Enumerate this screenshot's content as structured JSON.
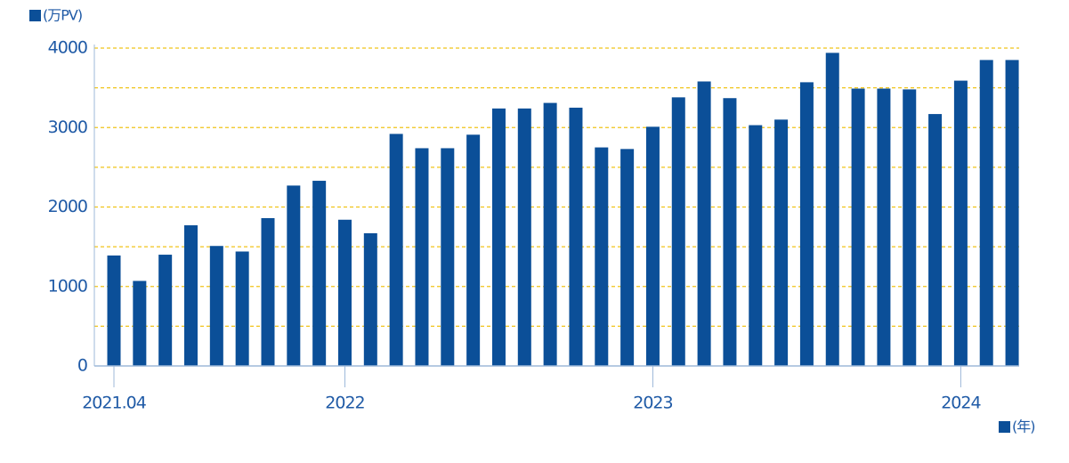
{
  "chart_data": {
    "type": "bar",
    "y_axis_label": "(万PV)",
    "x_axis_label": "(年)",
    "categories": [
      "2021.04",
      null,
      null,
      null,
      null,
      null,
      null,
      null,
      null,
      "2022",
      null,
      null,
      null,
      null,
      null,
      null,
      null,
      null,
      null,
      null,
      null,
      "2023",
      null,
      null,
      null,
      null,
      null,
      null,
      null,
      null,
      null,
      null,
      null,
      "2024",
      null,
      null
    ],
    "values": [
      1390,
      1070,
      1400,
      1770,
      1510,
      1440,
      1860,
      2270,
      2330,
      1840,
      1670,
      2920,
      2740,
      2740,
      2910,
      3240,
      3240,
      3310,
      3250,
      2750,
      2730,
      3010,
      3380,
      3580,
      3370,
      3030,
      3100,
      3570,
      3940,
      3490,
      3490,
      3480,
      3170,
      3590,
      3850,
      3850
    ],
    "color": "#0b4f98",
    "ylim": [
      0,
      4000
    ],
    "yticks": [
      0,
      1000,
      2000,
      3000,
      4000
    ],
    "grid": true,
    "grid_lines": [
      500,
      1000,
      1500,
      2000,
      2500,
      3000,
      3500,
      4000
    ],
    "grid_color": "#f0c419"
  }
}
